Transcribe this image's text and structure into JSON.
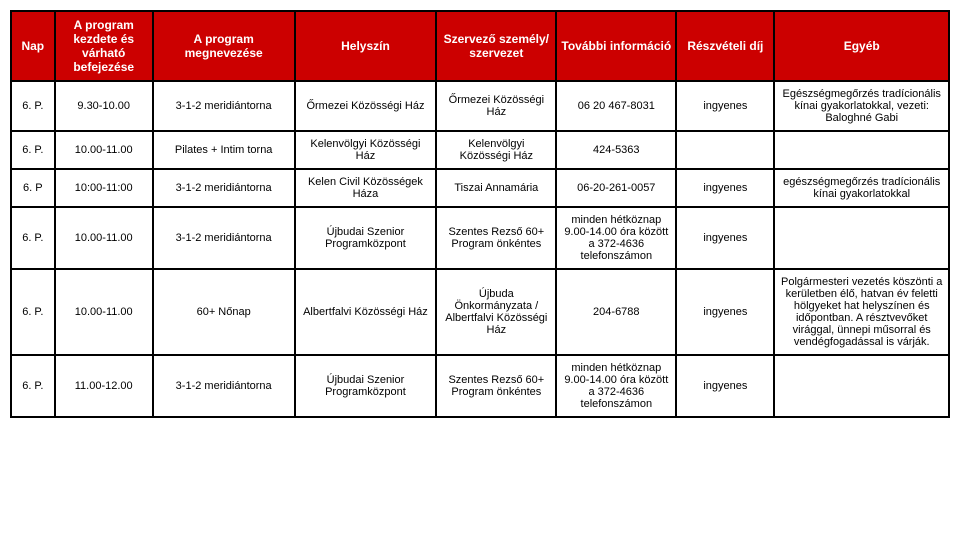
{
  "table": {
    "columns": [
      "Nap",
      "A program kezdete és várható befejezése",
      "A program megnevezése",
      "Helyszín",
      "Szervező személy/ szervezet",
      "További információ",
      "Részvételi díj",
      "Egyéb"
    ],
    "rows": [
      {
        "day": "6. P.",
        "time": "9.30-10.00",
        "name": "3-1-2 meridiántorna",
        "loc": "Őrmezei Közösségi Ház",
        "org": "Őrmezei Közösségi Ház",
        "info": "06 20 467-8031",
        "fee": "ingyenes",
        "other": "Egészségmegőrzés tradícionális kínai gyakorlatokkal, vezeti: Baloghné Gabi"
      },
      {
        "day": "6. P.",
        "time": "10.00-11.00",
        "name": "Pilates + Intim torna",
        "loc": "Kelenvölgyi Közösségi Ház",
        "org": "Kelenvölgyi Közösségi Ház",
        "info": "424-5363",
        "fee": "",
        "other": ""
      },
      {
        "day": "6. P",
        "time": "10:00-11:00",
        "name": "3-1-2 meridiántorna",
        "loc": "Kelen Civil Közösségek Háza",
        "org": "Tiszai Annamária",
        "info": "06-20-261-0057",
        "fee": "ingyenes",
        "other": "egészségmegőrzés tradícionális kínai gyakorlatokkal"
      },
      {
        "day": "6. P.",
        "time": "10.00-11.00",
        "name": "3-1-2 meridiántorna",
        "loc": "Újbudai Szenior Programközpont",
        "org": "Szentes Rezső 60+ Program önkéntes",
        "info": "minden hétköznap 9.00-14.00 óra között a 372-4636 telefonszámon",
        "fee": "ingyenes",
        "other": ""
      },
      {
        "day": "6. P.",
        "time": "10.00-11.00",
        "name": "60+ Nőnap",
        "loc": "Albertfalvi Közösségi Ház",
        "org": "Újbuda Önkormányzata / Albertfalvi Közösségi Ház",
        "info": "204-6788",
        "fee": "ingyenes",
        "other": "Polgármesteri vezetés köszönti a kerületben élő, hatvan év feletti hölgyeket hat helyszínen és időpontban. A résztvevőket virággal, ünnepi műsorral és vendégfogadással is várják."
      },
      {
        "day": "6. P.",
        "time": "11.00-12.00",
        "name": "3-1-2 meridiántorna",
        "loc": "Újbudai Szenior Programközpont",
        "org": "Szentes Rezső 60+ Program önkéntes",
        "info": "minden hétköznap 9.00-14.00 óra között a 372-4636 telefonszámon",
        "fee": "ingyenes",
        "other": ""
      }
    ],
    "header_bg": "#cc0000",
    "header_fg": "#ffffff",
    "border_color": "#000000",
    "font_family": "Arial",
    "header_fontsize": 12,
    "cell_fontsize": 11
  }
}
